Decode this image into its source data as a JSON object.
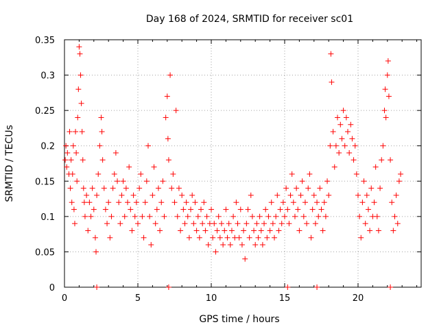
{
  "chart_data": {
    "type": "scatter",
    "title": "Day 168 of 2024, SRMTID for receiver sc01",
    "xlabel": "GPS time / hours",
    "ylabel": "SRMTID / TECUs",
    "xlim": [
      0,
      24.3
    ],
    "ylim": [
      0,
      0.35
    ],
    "x_ticks": [
      0,
      5,
      10,
      15,
      20
    ],
    "x_tick_labels": [
      "0",
      "5",
      "10",
      "15",
      "20"
    ],
    "y_ticks": [
      0,
      0.05,
      0.1,
      0.15,
      0.2,
      0.25,
      0.3,
      0.35
    ],
    "y_tick_labels": [
      "0",
      "0.05",
      "0.1",
      "0.15",
      "0.2",
      "0.25",
      "0.3",
      "0.35"
    ],
    "grid": true,
    "marker": "+",
    "marker_color": "#ff0000",
    "series": [
      {
        "name": "SRMTID",
        "points": [
          [
            0.05,
            0.18
          ],
          [
            0.1,
            0.2
          ],
          [
            0.15,
            0.17
          ],
          [
            0.2,
            0.19
          ],
          [
            0.3,
            0.16
          ],
          [
            0.35,
            0.22
          ],
          [
            0.4,
            0.14
          ],
          [
            0.45,
            0.18
          ],
          [
            0.5,
            0.12
          ],
          [
            0.55,
            0.16
          ],
          [
            0.6,
            0.2
          ],
          [
            0.65,
            0.11
          ],
          [
            0.7,
            0.09
          ],
          [
            0.75,
            0.22
          ],
          [
            0.8,
            0.19
          ],
          [
            0.85,
            0.15
          ],
          [
            0.9,
            0.24
          ],
          [
            0.95,
            0.28
          ],
          [
            1.0,
            0.34
          ],
          [
            1.05,
            0.33
          ],
          [
            1.1,
            0.3
          ],
          [
            1.15,
            0.26
          ],
          [
            1.2,
            0.22
          ],
          [
            1.25,
            0.18
          ],
          [
            1.3,
            0.14
          ],
          [
            1.35,
            0.12
          ],
          [
            1.4,
            0.1
          ],
          [
            1.5,
            0.13
          ],
          [
            1.6,
            0.08
          ],
          [
            1.7,
            0.12
          ],
          [
            1.8,
            0.1
          ],
          [
            1.9,
            0.14
          ],
          [
            2.0,
            0.11
          ],
          [
            2.1,
            0.07
          ],
          [
            2.15,
            0.05
          ],
          [
            2.2,
            0.13
          ],
          [
            2.3,
            0.16
          ],
          [
            2.4,
            0.2
          ],
          [
            2.5,
            0.24
          ],
          [
            2.55,
            0.22
          ],
          [
            2.6,
            0.18
          ],
          [
            2.7,
            0.14
          ],
          [
            2.8,
            0.11
          ],
          [
            2.9,
            0.09
          ],
          [
            3.0,
            0.12
          ],
          [
            3.1,
            0.07
          ],
          [
            3.2,
            0.1
          ],
          [
            3.3,
            0.14
          ],
          [
            3.4,
            0.16
          ],
          [
            3.5,
            0.19
          ],
          [
            3.6,
            0.15
          ],
          [
            3.7,
            0.12
          ],
          [
            3.8,
            0.09
          ],
          [
            3.9,
            0.13
          ],
          [
            4.0,
            0.15
          ],
          [
            4.1,
            0.1
          ],
          [
            4.2,
            0.14
          ],
          [
            4.3,
            0.12
          ],
          [
            4.4,
            0.17
          ],
          [
            4.5,
            0.11
          ],
          [
            4.6,
            0.08
          ],
          [
            4.7,
            0.13
          ],
          [
            4.8,
            0.1
          ],
          [
            4.9,
            0.12
          ],
          [
            5.0,
            0.09
          ],
          [
            5.1,
            0.14
          ],
          [
            5.2,
            0.16
          ],
          [
            5.3,
            0.1
          ],
          [
            5.4,
            0.07
          ],
          [
            5.5,
            0.12
          ],
          [
            5.6,
            0.15
          ],
          [
            5.7,
            0.2
          ],
          [
            5.8,
            0.1
          ],
          [
            5.9,
            0.06
          ],
          [
            6.0,
            0.13
          ],
          [
            6.1,
            0.17
          ],
          [
            6.2,
            0.09
          ],
          [
            6.3,
            0.11
          ],
          [
            6.4,
            0.14
          ],
          [
            6.5,
            0.08
          ],
          [
            6.6,
            0.12
          ],
          [
            6.7,
            0.15
          ],
          [
            6.8,
            0.1
          ],
          [
            6.9,
            0.24
          ],
          [
            7.0,
            0.27
          ],
          [
            7.05,
            0.21
          ],
          [
            7.1,
            0.18
          ],
          [
            7.2,
            0.3
          ],
          [
            7.3,
            0.14
          ],
          [
            7.4,
            0.16
          ],
          [
            7.5,
            0.12
          ],
          [
            7.6,
            0.25
          ],
          [
            7.7,
            0.1
          ],
          [
            7.8,
            0.14
          ],
          [
            7.9,
            0.08
          ],
          [
            8.0,
            0.13
          ],
          [
            8.1,
            0.11
          ],
          [
            8.2,
            0.09
          ],
          [
            8.3,
            0.12
          ],
          [
            8.4,
            0.1
          ],
          [
            8.5,
            0.07
          ],
          [
            8.6,
            0.11
          ],
          [
            8.7,
            0.13
          ],
          [
            8.8,
            0.09
          ],
          [
            8.9,
            0.12
          ],
          [
            9.0,
            0.08
          ],
          [
            9.1,
            0.1
          ],
          [
            9.2,
            0.07
          ],
          [
            9.3,
            0.11
          ],
          [
            9.4,
            0.09
          ],
          [
            9.5,
            0.12
          ],
          [
            9.6,
            0.08
          ],
          [
            9.7,
            0.1
          ],
          [
            9.8,
            0.06
          ],
          [
            9.9,
            0.09
          ],
          [
            10.0,
            0.11
          ],
          [
            10.1,
            0.07
          ],
          [
            10.2,
            0.09
          ],
          [
            10.3,
            0.05
          ],
          [
            10.4,
            0.08
          ],
          [
            10.5,
            0.1
          ],
          [
            10.6,
            0.07
          ],
          [
            10.7,
            0.09
          ],
          [
            10.8,
            0.06
          ],
          [
            10.9,
            0.08
          ],
          [
            11.0,
            0.11
          ],
          [
            11.1,
            0.07
          ],
          [
            11.2,
            0.09
          ],
          [
            11.3,
            0.06
          ],
          [
            11.4,
            0.08
          ],
          [
            11.5,
            0.1
          ],
          [
            11.6,
            0.07
          ],
          [
            11.7,
            0.12
          ],
          [
            11.8,
            0.09
          ],
          [
            11.9,
            0.07
          ],
          [
            12.0,
            0.11
          ],
          [
            12.1,
            0.06
          ],
          [
            12.2,
            0.08
          ],
          [
            12.3,
            0.04
          ],
          [
            12.4,
            0.09
          ],
          [
            12.5,
            0.11
          ],
          [
            12.6,
            0.07
          ],
          [
            12.7,
            0.13
          ],
          [
            12.8,
            0.1
          ],
          [
            12.9,
            0.08
          ],
          [
            13.0,
            0.06
          ],
          [
            13.1,
            0.09
          ],
          [
            13.2,
            0.07
          ],
          [
            13.3,
            0.1
          ],
          [
            13.4,
            0.08
          ],
          [
            13.5,
            0.06
          ],
          [
            13.6,
            0.09
          ],
          [
            13.7,
            0.11
          ],
          [
            13.8,
            0.07
          ],
          [
            13.9,
            0.1
          ],
          [
            14.0,
            0.08
          ],
          [
            14.1,
            0.12
          ],
          [
            14.2,
            0.09
          ],
          [
            14.3,
            0.07
          ],
          [
            14.4,
            0.1
          ],
          [
            14.5,
            0.13
          ],
          [
            14.6,
            0.08
          ],
          [
            14.7,
            0.11
          ],
          [
            14.8,
            0.09
          ],
          [
            14.9,
            0.12
          ],
          [
            15.0,
            0.1
          ],
          [
            15.1,
            0.14
          ],
          [
            15.2,
            0.11
          ],
          [
            15.3,
            0.09
          ],
          [
            15.4,
            0.13
          ],
          [
            15.5,
            0.16
          ],
          [
            15.6,
            0.12
          ],
          [
            15.7,
            0.1
          ],
          [
            15.8,
            0.14
          ],
          [
            15.9,
            0.11
          ],
          [
            16.0,
            0.08
          ],
          [
            16.1,
            0.13
          ],
          [
            16.2,
            0.15
          ],
          [
            16.3,
            0.1
          ],
          [
            16.4,
            0.12
          ],
          [
            16.5,
            0.09
          ],
          [
            16.6,
            0.14
          ],
          [
            16.7,
            0.16
          ],
          [
            16.8,
            0.07
          ],
          [
            16.9,
            0.11
          ],
          [
            17.0,
            0.13
          ],
          [
            17.1,
            0.09
          ],
          [
            17.2,
            0.12
          ],
          [
            17.3,
            0.1
          ],
          [
            17.4,
            0.14
          ],
          [
            17.5,
            0.11
          ],
          [
            17.6,
            0.08
          ],
          [
            17.7,
            0.12
          ],
          [
            17.8,
            0.1
          ],
          [
            17.9,
            0.15
          ],
          [
            18.0,
            0.13
          ],
          [
            18.1,
            0.2
          ],
          [
            18.15,
            0.33
          ],
          [
            18.2,
            0.29
          ],
          [
            18.3,
            0.22
          ],
          [
            18.4,
            0.17
          ],
          [
            18.5,
            0.2
          ],
          [
            18.6,
            0.24
          ],
          [
            18.7,
            0.19
          ],
          [
            18.8,
            0.23
          ],
          [
            18.9,
            0.21
          ],
          [
            19.0,
            0.25
          ],
          [
            19.1,
            0.2
          ],
          [
            19.2,
            0.24
          ],
          [
            19.3,
            0.22
          ],
          [
            19.4,
            0.19
          ],
          [
            19.5,
            0.23
          ],
          [
            19.6,
            0.21
          ],
          [
            19.7,
            0.18
          ],
          [
            19.8,
            0.2
          ],
          [
            19.9,
            0.16
          ],
          [
            20.0,
            0.13
          ],
          [
            20.1,
            0.1
          ],
          [
            20.2,
            0.07
          ],
          [
            20.3,
            0.12
          ],
          [
            20.4,
            0.15
          ],
          [
            20.5,
            0.09
          ],
          [
            20.6,
            0.13
          ],
          [
            20.7,
            0.11
          ],
          [
            20.8,
            0.08
          ],
          [
            20.9,
            0.14
          ],
          [
            21.0,
            0.1
          ],
          [
            21.1,
            0.12
          ],
          [
            21.2,
            0.17
          ],
          [
            21.3,
            0.1
          ],
          [
            21.4,
            0.08
          ],
          [
            21.5,
            0.14
          ],
          [
            21.6,
            0.18
          ],
          [
            21.7,
            0.2
          ],
          [
            21.8,
            0.25
          ],
          [
            21.85,
            0.28
          ],
          [
            21.9,
            0.24
          ],
          [
            22.0,
            0.3
          ],
          [
            22.05,
            0.32
          ],
          [
            22.1,
            0.27
          ],
          [
            22.2,
            0.18
          ],
          [
            22.3,
            0.12
          ],
          [
            22.4,
            0.08
          ],
          [
            22.5,
            0.1
          ],
          [
            22.6,
            0.13
          ],
          [
            22.7,
            0.09
          ],
          [
            22.8,
            0.15
          ],
          [
            22.9,
            0.16
          ]
        ],
        "zero_points": [
          2.2,
          7.1,
          15.2,
          17.2,
          22.2
        ]
      }
    ]
  }
}
